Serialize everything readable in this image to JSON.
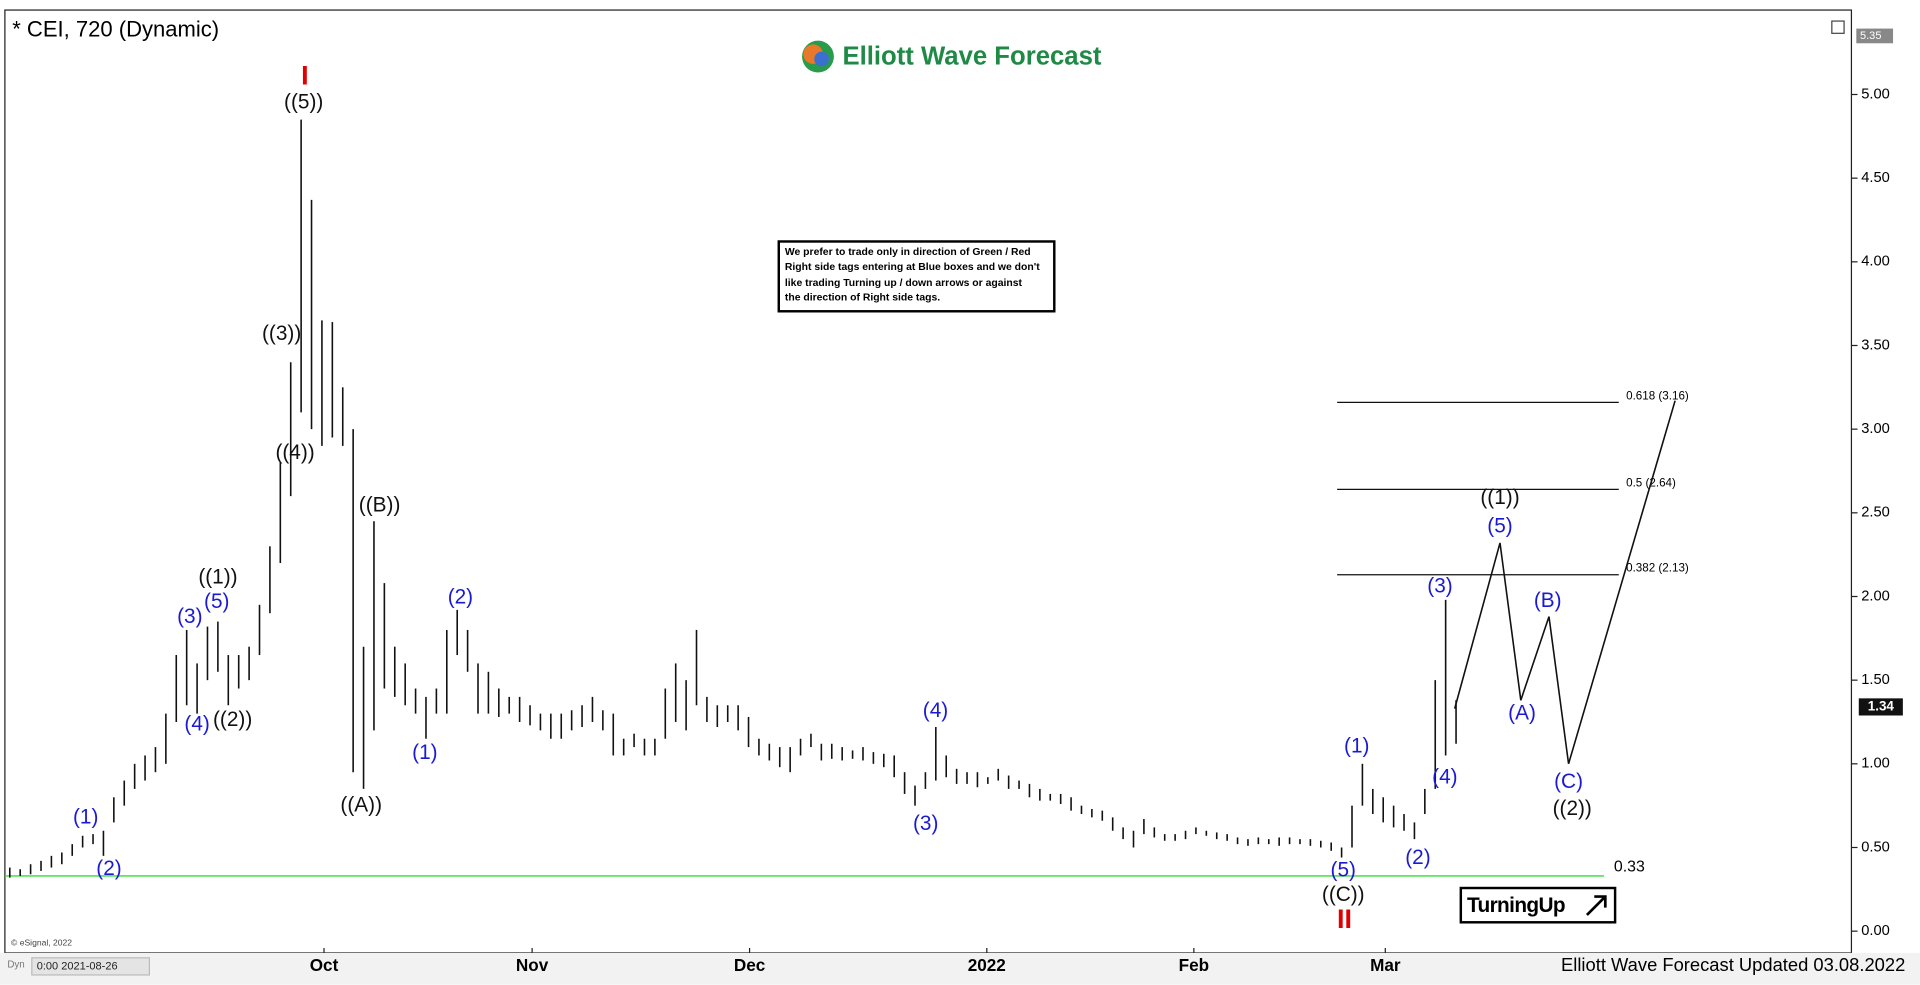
{
  "chart_data": {
    "type": "ohlc",
    "title": "* CEI, 720 (Dynamic)",
    "brand": "Elliott Wave Forecast",
    "footer": "Elliott Wave Forecast Updated 03.08.2022",
    "copyright": "© eSignal, 2022",
    "time_field": "0:00 2021-08-26",
    "mode_tag": "Dyn",
    "note": [
      "We prefer to trade only in direction of Green / Red",
      "Right side tags entering at Blue boxes and we don't",
      "like trading Turning up / down arrows or against",
      "the direction of Right side tags."
    ],
    "badge": "TurningUp",
    "color": "#111111",
    "xlim": [
      0,
      177
    ],
    "xticks": [
      {
        "value": 30.2,
        "label": "Oct"
      },
      {
        "value": 50.2,
        "label": "Nov"
      },
      {
        "value": 71.1,
        "label": "Dec"
      },
      {
        "value": 93.9,
        "label": "2022"
      },
      {
        "value": 113.8,
        "label": "Feb"
      },
      {
        "value": 132.2,
        "label": "Mar"
      }
    ],
    "ylim": [
      -0.13,
      5.49
    ],
    "yticks": [
      {
        "value": 0,
        "label": "0.00"
      },
      {
        "value": 0.5,
        "label": "0.50"
      },
      {
        "value": 1,
        "label": "1.00"
      },
      {
        "value": 1.5,
        "label": "1.50"
      },
      {
        "value": 2,
        "label": "2.00"
      },
      {
        "value": 2.5,
        "label": "2.50"
      },
      {
        "value": 3,
        "label": "3.00"
      },
      {
        "value": 3.5,
        "label": "3.50"
      },
      {
        "value": 4,
        "label": "4.00"
      },
      {
        "value": 4.5,
        "label": "4.50"
      },
      {
        "value": 5,
        "label": "5.00"
      }
    ],
    "high": [
      0.38,
      0.37,
      0.4,
      0.42,
      0.45,
      0.47,
      0.52,
      0.57,
      0.58,
      0.6,
      0.8,
      0.9,
      1.0,
      1.05,
      1.1,
      1.3,
      1.65,
      1.8,
      1.6,
      1.82,
      1.85,
      1.65,
      1.65,
      1.7,
      1.95,
      2.3,
      2.8,
      3.4,
      4.85,
      4.37,
      3.65,
      3.64,
      3.25,
      3.0,
      1.7,
      2.45,
      2.08,
      1.7,
      1.6,
      1.45,
      1.4,
      1.45,
      1.8,
      1.92,
      1.8,
      1.6,
      1.55,
      1.45,
      1.4,
      1.4,
      1.35,
      1.3,
      1.3,
      1.3,
      1.32,
      1.35,
      1.4,
      1.32,
      1.3,
      1.15,
      1.18,
      1.15,
      1.15,
      1.45,
      1.6,
      1.5,
      1.8,
      1.4,
      1.35,
      1.35,
      1.35,
      1.28,
      1.15,
      1.12,
      1.1,
      1.1,
      1.15,
      1.18,
      1.12,
      1.12,
      1.1,
      1.08,
      1.1,
      1.07,
      1.06,
      1.05,
      0.95,
      0.87,
      0.95,
      1.22,
      1.05,
      0.97,
      0.95,
      0.95,
      0.92,
      0.97,
      0.93,
      0.9,
      0.88,
      0.85,
      0.82,
      0.82,
      0.8,
      0.75,
      0.73,
      0.72,
      0.68,
      0.62,
      0.6,
      0.67,
      0.62,
      0.58,
      0.58,
      0.6,
      0.62,
      0.6,
      0.59,
      0.58,
      0.56,
      0.55,
      0.56,
      0.55,
      0.56,
      0.56,
      0.55,
      0.55,
      0.54,
      0.53,
      0.5,
      0.75,
      1.0,
      0.85,
      0.8,
      0.75,
      0.7,
      0.65,
      0.85,
      1.5,
      1.98,
      1.38
    ],
    "low": [
      0.32,
      0.33,
      0.34,
      0.36,
      0.38,
      0.4,
      0.45,
      0.5,
      0.52,
      0.45,
      0.65,
      0.75,
      0.85,
      0.9,
      0.95,
      1.0,
      1.25,
      1.35,
      1.3,
      1.5,
      1.55,
      1.35,
      1.45,
      1.5,
      1.65,
      1.9,
      2.2,
      2.6,
      3.1,
      3.0,
      2.9,
      2.95,
      2.9,
      0.95,
      0.85,
      1.2,
      1.45,
      1.4,
      1.35,
      1.3,
      1.15,
      1.3,
      1.3,
      1.65,
      1.55,
      1.3,
      1.3,
      1.28,
      1.3,
      1.25,
      1.23,
      1.2,
      1.15,
      1.15,
      1.2,
      1.22,
      1.25,
      1.2,
      1.05,
      1.05,
      1.1,
      1.05,
      1.05,
      1.15,
      1.25,
      1.2,
      1.35,
      1.25,
      1.22,
      1.25,
      1.2,
      1.1,
      1.05,
      1.02,
      0.98,
      0.95,
      1.05,
      1.1,
      1.02,
      1.03,
      1.02,
      1.03,
      1.02,
      1.0,
      0.98,
      0.92,
      0.82,
      0.75,
      0.85,
      0.9,
      0.92,
      0.88,
      0.88,
      0.86,
      0.88,
      0.9,
      0.85,
      0.85,
      0.8,
      0.78,
      0.78,
      0.76,
      0.72,
      0.7,
      0.68,
      0.66,
      0.6,
      0.55,
      0.5,
      0.58,
      0.56,
      0.54,
      0.54,
      0.55,
      0.58,
      0.57,
      0.55,
      0.54,
      0.52,
      0.51,
      0.52,
      0.52,
      0.51,
      0.52,
      0.52,
      0.51,
      0.5,
      0.48,
      0.44,
      0.5,
      0.75,
      0.7,
      0.65,
      0.62,
      0.6,
      0.55,
      0.7,
      0.85,
      1.05,
      1.12
    ],
    "last_price": {
      "value": 1.34,
      "label": "1.34"
    },
    "top_price": 5.35,
    "support": {
      "value": 0.33,
      "color": "#33dd33"
    },
    "fib_levels": [
      {
        "value": 3.16,
        "label": "0.618 (3.16)"
      },
      {
        "value": 2.64,
        "label": "0.5 (2.64)"
      },
      {
        "value": 2.13,
        "label": "0.382 (2.13)"
      }
    ],
    "projection": [
      1.33,
      2.32,
      1.38,
      1.88,
      1.0,
      3.17
    ],
    "waves": [
      {
        "text": "(1)",
        "color": "#1a1ad6"
      },
      {
        "text": "(2)",
        "color": "#1a1ad6"
      },
      {
        "text": "(3)",
        "color": "#1a1ad6"
      },
      {
        "text": "(4)",
        "color": "#1a1ad6"
      },
      {
        "text": "(5)",
        "color": "#1a1ad6"
      },
      {
        "text": "((1))",
        "color": "#111111"
      },
      {
        "text": "((2))",
        "color": "#111111"
      },
      {
        "text": "((3))",
        "color": "#111111"
      },
      {
        "text": "((4))",
        "color": "#111111"
      },
      {
        "text": "((5))",
        "color": "#111111"
      },
      {
        "text": "I",
        "color": "#e00000"
      },
      {
        "text": "((A))",
        "color": "#111111"
      },
      {
        "text": "((B))",
        "color": "#111111"
      },
      {
        "text": "(1)",
        "color": "#1a1ad6"
      },
      {
        "text": "(2)",
        "color": "#1a1ad6"
      },
      {
        "text": "(3)",
        "color": "#1a1ad6"
      },
      {
        "text": "(4)",
        "color": "#1a1ad6"
      },
      {
        "text": "(5)",
        "color": "#1a1ad6"
      },
      {
        "text": "((C))",
        "color": "#111111"
      },
      {
        "text": "II",
        "color": "#e00000"
      },
      {
        "text": "(1)",
        "color": "#1a1ad6"
      },
      {
        "text": "(2)",
        "color": "#1a1ad6"
      },
      {
        "text": "(3)",
        "color": "#1a1ad6"
      },
      {
        "text": "(4)",
        "color": "#1a1ad6"
      },
      {
        "text": "((1))",
        "color": "#111111"
      },
      {
        "text": "(5)",
        "color": "#1a1ad6"
      },
      {
        "text": "(A)",
        "color": "#1a1ad6"
      },
      {
        "text": "(B)",
        "color": "#1a1ad6"
      },
      {
        "text": "(C)",
        "color": "#1a1ad6"
      },
      {
        "text": "((2))",
        "color": "#111111"
      }
    ]
  }
}
